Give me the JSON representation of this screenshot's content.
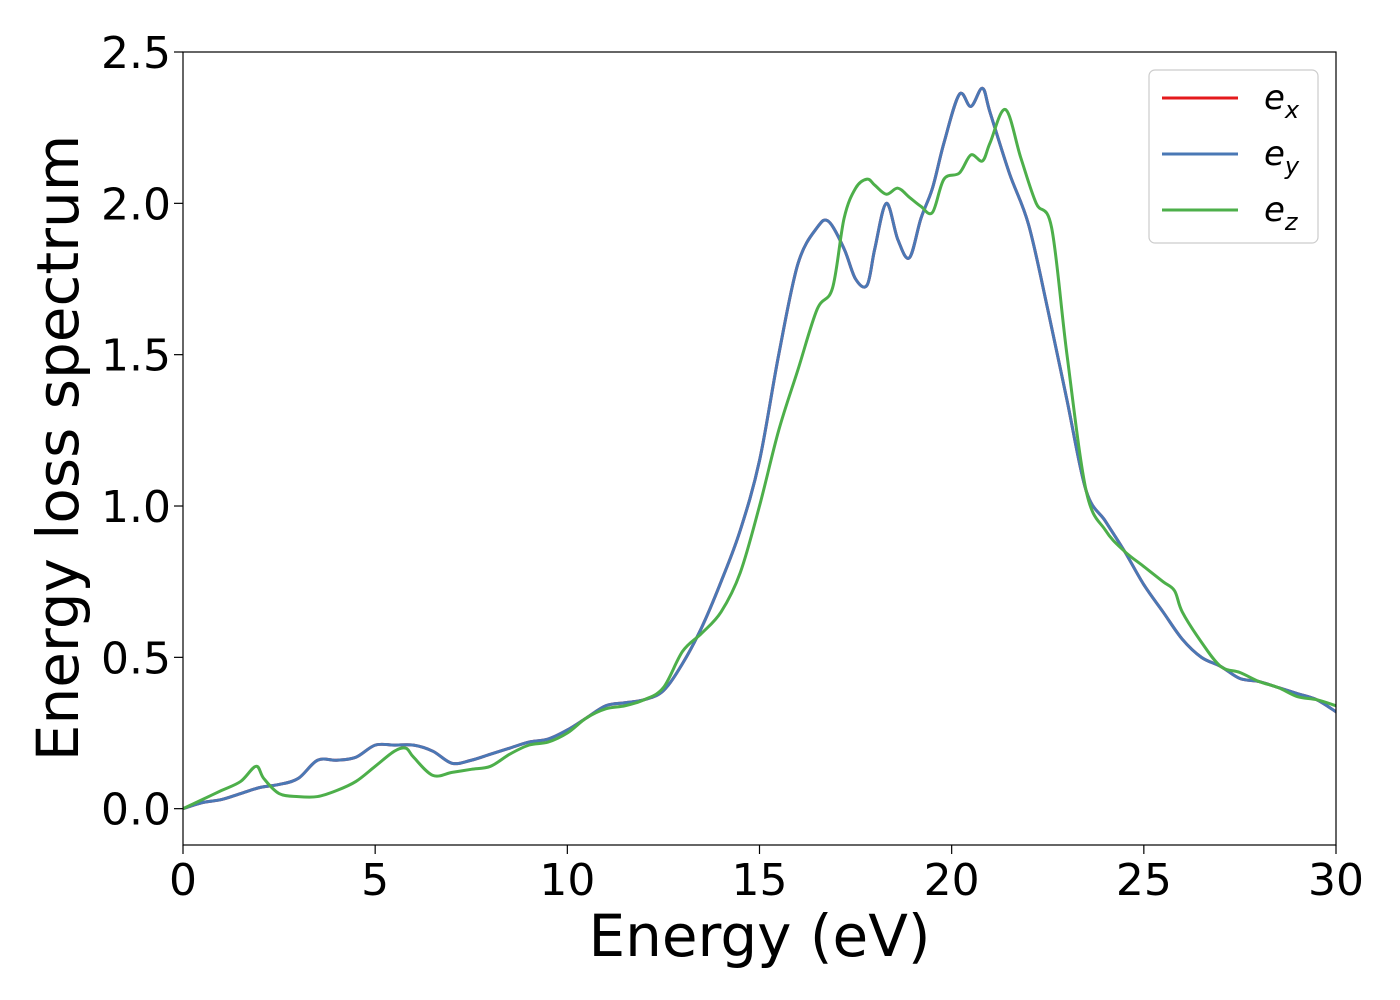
{
  "chart_data": {
    "type": "line",
    "xlabel": "Energy (eV)",
    "ylabel": "Energy loss spectrum",
    "xlim": [
      0,
      30
    ],
    "ylim": [
      -0.12,
      2.5
    ],
    "xticks": [
      0,
      5,
      10,
      15,
      20,
      25,
      30
    ],
    "xtick_labels": [
      "0",
      "5",
      "10",
      "15",
      "20",
      "25",
      "30"
    ],
    "yticks": [
      0.0,
      0.5,
      1.0,
      1.5,
      2.0,
      2.5
    ],
    "ytick_labels": [
      "0.0",
      "0.5",
      "1.0",
      "1.5",
      "2.0",
      "2.5"
    ],
    "grid": false,
    "legend_position": "top-right",
    "series": [
      {
        "name": "e",
        "subscript": "x",
        "color": "#e41a1c",
        "x": [
          0,
          0.5,
          1,
          1.5,
          2,
          2.5,
          3,
          3.5,
          4,
          4.5,
          5,
          5.5,
          6,
          6.5,
          7,
          7.5,
          8,
          8.5,
          9,
          9.5,
          10,
          10.5,
          11,
          11.5,
          12,
          12.5,
          13,
          13.5,
          14,
          14.5,
          15,
          15.5,
          16,
          16.5,
          16.8,
          17.2,
          17.5,
          17.8,
          18,
          18.3,
          18.6,
          18.9,
          19.2,
          19.5,
          19.8,
          20.2,
          20.5,
          20.8,
          21,
          21.5,
          22,
          22.5,
          23,
          23.5,
          24,
          24.5,
          25,
          25.5,
          26,
          26.5,
          27,
          27.5,
          28,
          28.5,
          29,
          29.5,
          30
        ],
        "y": [
          0,
          0.02,
          0.03,
          0.05,
          0.07,
          0.08,
          0.1,
          0.16,
          0.16,
          0.17,
          0.21,
          0.21,
          0.21,
          0.19,
          0.15,
          0.16,
          0.18,
          0.2,
          0.22,
          0.23,
          0.26,
          0.3,
          0.34,
          0.35,
          0.36,
          0.39,
          0.48,
          0.6,
          0.75,
          0.92,
          1.15,
          1.5,
          1.8,
          1.92,
          1.94,
          1.85,
          1.75,
          1.73,
          1.85,
          2.0,
          1.88,
          1.82,
          1.95,
          2.05,
          2.2,
          2.36,
          2.32,
          2.38,
          2.3,
          2.1,
          1.93,
          1.65,
          1.35,
          1.05,
          0.95,
          0.85,
          0.74,
          0.65,
          0.56,
          0.5,
          0.47,
          0.43,
          0.42,
          0.4,
          0.38,
          0.36,
          0.32
        ]
      },
      {
        "name": "e",
        "subscript": "y",
        "color": "#4a78b5",
        "x": [
          0,
          0.5,
          1,
          1.5,
          2,
          2.5,
          3,
          3.5,
          4,
          4.5,
          5,
          5.5,
          6,
          6.5,
          7,
          7.5,
          8,
          8.5,
          9,
          9.5,
          10,
          10.5,
          11,
          11.5,
          12,
          12.5,
          13,
          13.5,
          14,
          14.5,
          15,
          15.5,
          16,
          16.5,
          16.8,
          17.2,
          17.5,
          17.8,
          18,
          18.3,
          18.6,
          18.9,
          19.2,
          19.5,
          19.8,
          20.2,
          20.5,
          20.8,
          21,
          21.5,
          22,
          22.5,
          23,
          23.5,
          24,
          24.5,
          25,
          25.5,
          26,
          26.5,
          27,
          27.5,
          28,
          28.5,
          29,
          29.5,
          30
        ],
        "y": [
          0,
          0.02,
          0.03,
          0.05,
          0.07,
          0.08,
          0.1,
          0.16,
          0.16,
          0.17,
          0.21,
          0.21,
          0.21,
          0.19,
          0.15,
          0.16,
          0.18,
          0.2,
          0.22,
          0.23,
          0.26,
          0.3,
          0.34,
          0.35,
          0.36,
          0.39,
          0.48,
          0.6,
          0.75,
          0.92,
          1.15,
          1.5,
          1.8,
          1.92,
          1.94,
          1.85,
          1.75,
          1.73,
          1.85,
          2.0,
          1.88,
          1.82,
          1.95,
          2.05,
          2.2,
          2.36,
          2.32,
          2.38,
          2.3,
          2.1,
          1.93,
          1.65,
          1.35,
          1.05,
          0.95,
          0.85,
          0.74,
          0.65,
          0.56,
          0.5,
          0.47,
          0.43,
          0.42,
          0.4,
          0.38,
          0.36,
          0.32
        ]
      },
      {
        "name": "e",
        "subscript": "z",
        "color": "#4daf4a",
        "x": [
          0,
          0.5,
          1,
          1.5,
          1.9,
          2.1,
          2.5,
          3,
          3.5,
          4,
          4.5,
          5,
          5.5,
          5.8,
          6,
          6.5,
          7,
          7.5,
          8,
          8.5,
          9,
          9.5,
          10,
          10.5,
          11,
          11.5,
          12,
          12.5,
          13,
          13.5,
          14,
          14.5,
          15,
          15.5,
          16,
          16.5,
          16.9,
          17.2,
          17.5,
          17.8,
          18,
          18.3,
          18.6,
          18.9,
          19.2,
          19.5,
          19.8,
          20.2,
          20.5,
          20.8,
          21,
          21.4,
          21.8,
          22.2,
          22.6,
          23,
          23.5,
          24,
          24.5,
          25,
          25.5,
          25.8,
          26,
          26.5,
          27,
          27.5,
          28,
          28.5,
          29,
          29.5,
          30
        ],
        "y": [
          0,
          0.03,
          0.06,
          0.09,
          0.14,
          0.1,
          0.05,
          0.04,
          0.04,
          0.06,
          0.09,
          0.14,
          0.19,
          0.2,
          0.17,
          0.11,
          0.12,
          0.13,
          0.14,
          0.18,
          0.21,
          0.22,
          0.25,
          0.3,
          0.33,
          0.34,
          0.36,
          0.4,
          0.52,
          0.58,
          0.65,
          0.78,
          1.0,
          1.25,
          1.45,
          1.65,
          1.72,
          1.95,
          2.05,
          2.08,
          2.06,
          2.03,
          2.05,
          2.02,
          1.99,
          1.97,
          2.08,
          2.1,
          2.16,
          2.14,
          2.2,
          2.31,
          2.15,
          2.0,
          1.92,
          1.5,
          1.05,
          0.92,
          0.85,
          0.8,
          0.75,
          0.72,
          0.65,
          0.55,
          0.47,
          0.45,
          0.42,
          0.4,
          0.37,
          0.36,
          0.34
        ]
      }
    ]
  }
}
